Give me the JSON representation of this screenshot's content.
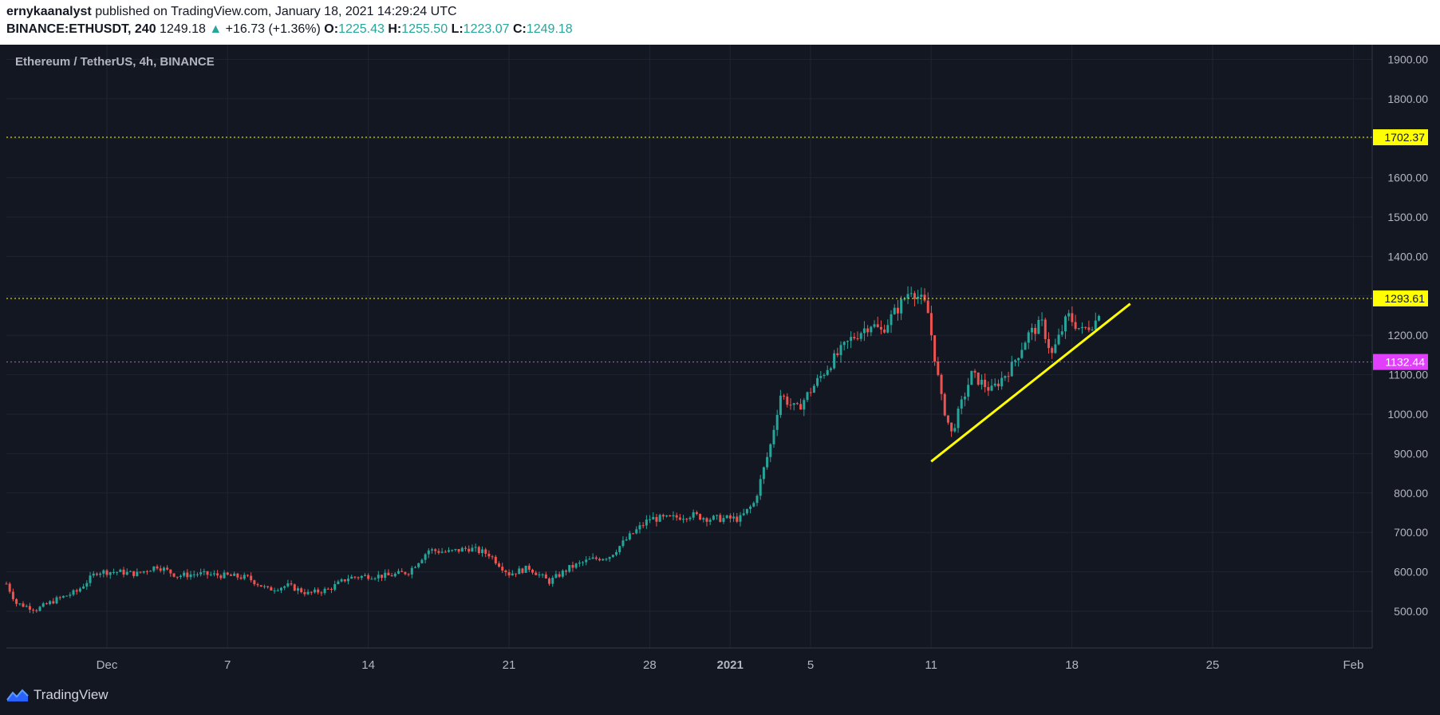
{
  "header": {
    "author": "ernykaanalyst",
    "published_text": "published on TradingView.com, January 18, 2021 14:29:24 UTC",
    "symbol": "BINANCE:ETHUSDT, 240",
    "last": "1249.18",
    "change_arrow": "▲",
    "change": "+16.73 (+1.36%)",
    "o_label": "O:",
    "o_value": "1225.43",
    "h_label": "H:",
    "h_value": "1255.50",
    "l_label": "L:",
    "l_value": "1223.07",
    "c_label": "C:",
    "c_value": "1249.18"
  },
  "footer": {
    "brand": "TradingView",
    "logo_icon": "tradingview-logo-icon"
  },
  "colors": {
    "background": "#131722",
    "grid": "#1f2431",
    "up": "#26a69a",
    "down": "#ef5350",
    "yellow": "#ffff00",
    "magenta": "#e040fb",
    "axis_text": "#b2b5be"
  },
  "chart_data": {
    "type": "candlestick",
    "title": "Ethereum / TetherUS, 4h, BINANCE",
    "ylim": [
      430,
      1960
    ],
    "y_ticks": [
      500,
      600,
      700,
      800,
      900,
      1000,
      1100,
      1200,
      1300,
      1400,
      1500,
      1600,
      1700,
      1800,
      1900
    ],
    "y_tick_labels": [
      "500.00",
      "600.00",
      "700.00",
      "800.00",
      "900.00",
      "1000.00",
      "1100.00",
      "1200.00",
      "1300.00",
      "1400.00",
      "1500.00",
      "1600.00",
      "1700.00",
      "1800.00",
      "1900.00"
    ],
    "x_start": "2020-11-26",
    "x_range_days": [
      0,
      67.8
    ],
    "x_ticks": [
      {
        "day": 5,
        "label": "Dec",
        "bold": false
      },
      {
        "day": 11,
        "label": "7",
        "bold": false
      },
      {
        "day": 18,
        "label": "14",
        "bold": false
      },
      {
        "day": 25,
        "label": "21",
        "bold": false
      },
      {
        "day": 32,
        "label": "28",
        "bold": false
      },
      {
        "day": 36,
        "label": "2021",
        "bold": true
      },
      {
        "day": 40,
        "label": "5",
        "bold": false
      },
      {
        "day": 46,
        "label": "11",
        "bold": false
      },
      {
        "day": 53,
        "label": "18",
        "bold": false
      },
      {
        "day": 60,
        "label": "25",
        "bold": false
      },
      {
        "day": 67,
        "label": "Feb",
        "bold": false
      }
    ],
    "candle_interval_days": 0.1667,
    "price_path_anchors": [
      [
        0,
        570
      ],
      [
        0.5,
        520
      ],
      [
        1.5,
        505
      ],
      [
        2.5,
        530
      ],
      [
        3.5,
        550
      ],
      [
        4.5,
        600
      ],
      [
        5.5,
        600
      ],
      [
        6.5,
        595
      ],
      [
        7.5,
        615
      ],
      [
        8.5,
        590
      ],
      [
        9.5,
        595
      ],
      [
        11,
        590
      ],
      [
        12,
        585
      ],
      [
        13,
        555
      ],
      [
        14,
        565
      ],
      [
        15,
        545
      ],
      [
        16,
        555
      ],
      [
        17,
        585
      ],
      [
        18,
        590
      ],
      [
        19,
        590
      ],
      [
        20,
        600
      ],
      [
        21,
        655
      ],
      [
        22,
        650
      ],
      [
        23,
        660
      ],
      [
        24,
        645
      ],
      [
        25,
        595
      ],
      [
        26,
        610
      ],
      [
        27,
        575
      ],
      [
        28,
        610
      ],
      [
        29,
        630
      ],
      [
        30,
        640
      ],
      [
        31,
        690
      ],
      [
        32,
        735
      ],
      [
        33,
        735
      ],
      [
        34,
        745
      ],
      [
        35,
        735
      ],
      [
        36.5,
        735
      ],
      [
        37.2,
        775
      ],
      [
        38,
        920
      ],
      [
        38.5,
        1050
      ],
      [
        39.3,
        1010
      ],
      [
        40,
        1060
      ],
      [
        41,
        1130
      ],
      [
        42,
        1190
      ],
      [
        43,
        1230
      ],
      [
        43.5,
        1210
      ],
      [
        44.5,
        1280
      ],
      [
        45,
        1320
      ],
      [
        45.8,
        1270
      ],
      [
        46.5,
        1040
      ],
      [
        47,
        950
      ],
      [
        48,
        1100
      ],
      [
        49,
        1060
      ],
      [
        50,
        1120
      ],
      [
        50.8,
        1200
      ],
      [
        51.5,
        1230
      ],
      [
        52,
        1150
      ],
      [
        52.8,
        1250
      ],
      [
        53.5,
        1210
      ],
      [
        54,
        1230
      ],
      [
        54.5,
        1249
      ]
    ],
    "series": [
      {
        "name": "Horizontal line",
        "value": 1702.37,
        "label": "1702.37",
        "color": "#ffff00",
        "style": "dotted",
        "label_text_color": "#131722"
      },
      {
        "name": "Horizontal line",
        "value": 1293.61,
        "label": "1293.61",
        "color": "#ffff00",
        "style": "dotted",
        "label_text_color": "#131722"
      },
      {
        "name": "Horizontal line",
        "value": 1132.44,
        "label": "1132.44",
        "color": "#e040fb",
        "style": "dotted",
        "label_text_color": "#ffffff"
      }
    ],
    "trendline": {
      "x1_day": 46,
      "y1": 880,
      "x2_day": 55.9,
      "y2": 1280,
      "color": "#ffff00"
    }
  }
}
